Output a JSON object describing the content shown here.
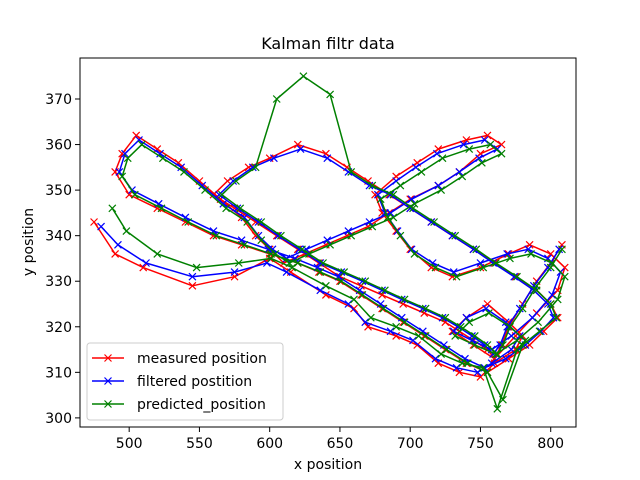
{
  "chart_data": {
    "type": "line",
    "title": "Kalman filtr data",
    "xlabel": "x position",
    "ylabel": "y position",
    "xlim": [
      465,
      818
    ],
    "ylim": [
      298,
      379
    ],
    "xticks": [
      500,
      550,
      600,
      650,
      700,
      750,
      800
    ],
    "yticks": [
      300,
      310,
      320,
      330,
      340,
      350,
      360,
      370
    ],
    "grid": false,
    "legend_position": "lower-left",
    "marker": "x",
    "series": [
      {
        "name": "measured position",
        "color": "#ff0000",
        "x": [
          475,
          490,
          510,
          545,
          575,
          600,
          615,
          640,
          660,
          670,
          690,
          705,
          720,
          735,
          750,
          760,
          775,
          780,
          770,
          755,
          740,
          730,
          745,
          760,
          775,
          790,
          805,
          810,
          800,
          785,
          770,
          750,
          730,
          715,
          700,
          690,
          680,
          675,
          690,
          705,
          720,
          740,
          755,
          765,
          750,
          735,
          720,
          700,
          685,
          670,
          655,
          640,
          625,
          610,
          600,
          590,
          580,
          565,
          550,
          535,
          520,
          505,
          495,
          490,
          500,
          520,
          540,
          560,
          580,
          600,
          620,
          635,
          650,
          665,
          680,
          695,
          710,
          725,
          740,
          755,
          770,
          785,
          795,
          805,
          800,
          790,
          775,
          760,
          745,
          730,
          715,
          700,
          685,
          670,
          655,
          640,
          620,
          600,
          585,
          570,
          560,
          575,
          590,
          605,
          620,
          635,
          650,
          665,
          680,
          695,
          710,
          725,
          735,
          745,
          755,
          760,
          765,
          770,
          780,
          790,
          800,
          808
        ],
        "y": [
          343,
          336,
          333,
          329,
          331,
          335,
          332,
          327,
          324,
          320,
          318,
          316,
          312,
          310,
          309,
          312,
          315,
          318,
          321,
          325,
          322,
          319,
          316,
          313,
          318,
          323,
          328,
          333,
          336,
          338,
          336,
          333,
          331,
          333,
          337,
          341,
          345,
          349,
          353,
          356,
          359,
          361,
          362,
          360,
          358,
          354,
          351,
          348,
          345,
          342,
          340,
          338,
          336,
          334,
          337,
          340,
          344,
          348,
          352,
          356,
          359,
          362,
          358,
          354,
          349,
          346,
          343,
          340,
          338,
          336,
          334,
          332,
          330,
          327,
          324,
          321,
          318,
          315,
          312,
          310,
          313,
          316,
          319,
          322,
          325,
          328,
          331,
          334,
          337,
          340,
          343,
          346,
          349,
          352,
          355,
          358,
          360,
          357,
          355,
          352,
          349,
          346,
          343,
          340,
          337,
          334,
          331,
          329,
          327,
          325,
          323,
          321,
          319,
          317,
          315,
          313,
          316,
          320,
          325,
          330,
          334,
          338
        ]
      },
      {
        "name": "filtered postition",
        "color": "#0000ff",
        "x": [
          480,
          492,
          512,
          545,
          575,
          598,
          612,
          636,
          656,
          668,
          686,
          702,
          718,
          733,
          748,
          758,
          772,
          778,
          768,
          754,
          740,
          731,
          744,
          758,
          772,
          787,
          801,
          807,
          798,
          784,
          769,
          750,
          731,
          716,
          701,
          691,
          682,
          677,
          690,
          704,
          719,
          738,
          753,
          762,
          749,
          735,
          720,
          701,
          686,
          671,
          656,
          641,
          626,
          612,
          602,
          592,
          582,
          567,
          552,
          537,
          522,
          507,
          497,
          493,
          502,
          521,
          540,
          560,
          580,
          599,
          618,
          634,
          649,
          664,
          679,
          694,
          709,
          724,
          739,
          753,
          768,
          782,
          793,
          802,
          798,
          788,
          774,
          759,
          745,
          730,
          715,
          700,
          686,
          671,
          656,
          641,
          622,
          603,
          588,
          574,
          564,
          577,
          592,
          606,
          621,
          636,
          651,
          666,
          680,
          694,
          709,
          723,
          734,
          744,
          753,
          759,
          764,
          769,
          778,
          788,
          798,
          806
        ],
        "y": [
          342,
          338,
          334,
          331,
          332,
          334,
          332,
          328,
          325,
          321,
          319,
          317,
          313,
          311,
          310,
          312,
          315,
          318,
          321,
          324,
          322,
          319,
          317,
          315,
          318,
          322,
          327,
          332,
          335,
          337,
          336,
          334,
          332,
          334,
          337,
          341,
          345,
          349,
          352,
          355,
          358,
          360,
          361,
          359,
          357,
          354,
          351,
          348,
          345,
          343,
          341,
          339,
          337,
          335,
          337,
          340,
          344,
          347,
          351,
          355,
          358,
          361,
          358,
          354,
          350,
          347,
          344,
          341,
          339,
          337,
          335,
          333,
          331,
          328,
          325,
          322,
          319,
          316,
          313,
          311,
          313,
          316,
          319,
          322,
          325,
          328,
          331,
          334,
          337,
          340,
          343,
          346,
          349,
          351,
          354,
          357,
          359,
          357,
          355,
          352,
          349,
          346,
          343,
          340,
          337,
          334,
          332,
          330,
          328,
          326,
          324,
          322,
          320,
          318,
          316,
          314,
          316,
          320,
          324,
          329,
          333,
          337
        ]
      },
      {
        "name": "predicted_position",
        "color": "#008000",
        "x": [
          488,
          498,
          520,
          548,
          578,
          601,
          616,
          640,
          660,
          672,
          690,
          706,
          722,
          737,
          752,
          762,
          776,
          782,
          771,
          756,
          742,
          732,
          746,
          761,
          776,
          791,
          805,
          810,
          801,
          786,
          771,
          752,
          733,
          718,
          703,
          693,
          684,
          679,
          693,
          708,
          723,
          742,
          757,
          765,
          751,
          737,
          722,
          703,
          688,
          673,
          658,
          643,
          628,
          614,
          604,
          594,
          584,
          569,
          554,
          539,
          524,
          509,
          499,
          495,
          504,
          523,
          542,
          562,
          582,
          601,
          620,
          636,
          651,
          666,
          681,
          696,
          711,
          726,
          741,
          755,
          766,
          780,
          792,
          804,
          800,
          790,
          776,
          761,
          747,
          732,
          717,
          702,
          688,
          673,
          658,
          643,
          624,
          605,
          590,
          576,
          566,
          579,
          594,
          608,
          623,
          638,
          653,
          668,
          682,
          696,
          711,
          725,
          736,
          746,
          755,
          762,
          766,
          771,
          780,
          790,
          800,
          808
        ],
        "y": [
          346,
          341,
          336,
          333,
          334,
          335,
          333,
          329,
          326,
          322,
          320,
          318,
          314,
          312,
          311,
          302,
          315,
          317,
          320,
          323,
          321,
          318,
          316,
          314,
          317,
          321,
          326,
          331,
          334,
          336,
          335,
          333,
          331,
          333,
          336,
          340,
          344,
          348,
          351,
          354,
          357,
          359,
          360,
          358,
          356,
          353,
          350,
          347,
          344,
          342,
          340,
          338,
          336,
          334,
          336,
          339,
          343,
          346,
          350,
          354,
          357,
          360,
          357,
          353,
          349,
          346,
          343,
          340,
          338,
          336,
          334,
          332,
          330,
          327,
          324,
          321,
          318,
          315,
          312,
          310,
          304,
          316,
          319,
          322,
          325,
          328,
          331,
          334,
          337,
          340,
          343,
          346,
          349,
          351,
          354,
          371,
          375,
          370,
          355,
          352,
          349,
          346,
          343,
          340,
          337,
          334,
          332,
          330,
          328,
          326,
          324,
          322,
          320,
          318,
          316,
          314,
          316,
          320,
          324,
          329,
          333,
          337
        ]
      }
    ]
  }
}
